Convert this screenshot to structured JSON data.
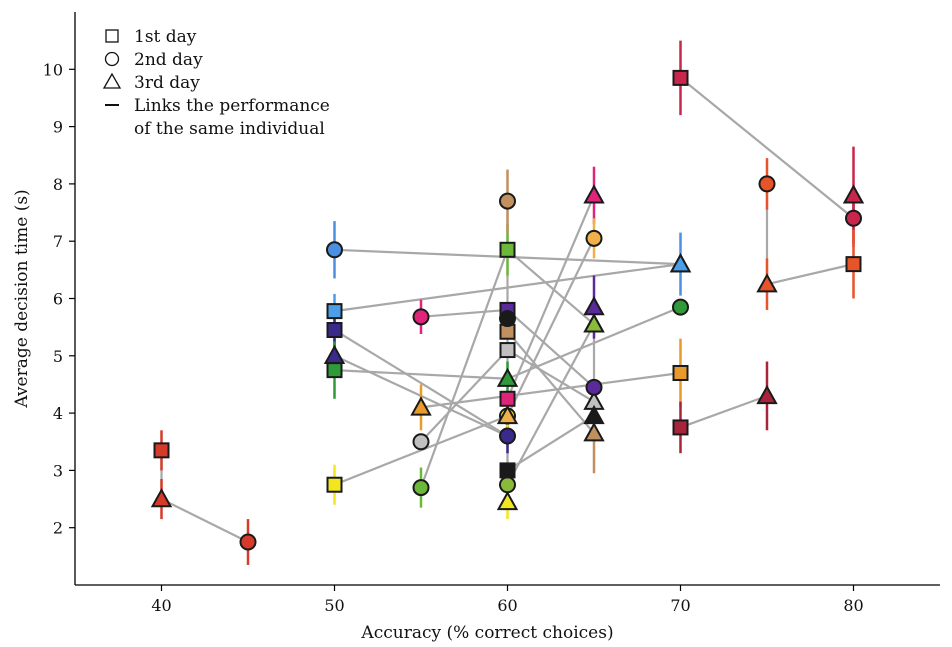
{
  "chart_data": {
    "type": "scatter",
    "xlabel": "Accuracy (% correct choices)",
    "ylabel": "Average decision time (s)",
    "xlim": [
      35,
      85
    ],
    "ylim": [
      1,
      11
    ],
    "xticks": [
      40,
      50,
      60,
      70,
      80
    ],
    "yticks": [
      2,
      3,
      4,
      5,
      6,
      7,
      8,
      9,
      10
    ],
    "legend_position": "top-left",
    "legend": [
      {
        "symbol": "square",
        "label": "1st day"
      },
      {
        "symbol": "circle",
        "label": "2nd day"
      },
      {
        "symbol": "triangle",
        "label": "3rd day"
      },
      {
        "symbol": "line",
        "label": "Links the performance\nof the same individual"
      }
    ],
    "individuals": [
      {
        "color": "#d63a2a",
        "points": [
          {
            "day": 1,
            "x": 40,
            "y": 3.35,
            "err": 0.35
          },
          {
            "day": 3,
            "x": 40,
            "y": 2.5,
            "err": 0.35
          },
          {
            "day": 2,
            "x": 45,
            "y": 1.75,
            "err": 0.4
          }
        ]
      },
      {
        "color": "#c8264a",
        "points": [
          {
            "day": 1,
            "x": 70,
            "y": 9.85,
            "err": 0.65
          },
          {
            "day": 2,
            "x": 80,
            "y": 7.4,
            "err": 0.5
          },
          {
            "day": 3,
            "x": 80,
            "y": 7.8,
            "err": 0.85
          }
        ]
      },
      {
        "color": "#e8542a",
        "points": [
          {
            "day": 2,
            "x": 75,
            "y": 8.0,
            "err": 0.45
          },
          {
            "day": 3,
            "x": 75,
            "y": 6.25,
            "err": 0.45
          },
          {
            "day": 1,
            "x": 80,
            "y": 6.6,
            "err": 0.6
          }
        ]
      },
      {
        "color": "#4a8fe0",
        "points": [
          {
            "day": 2,
            "x": 50,
            "y": 6.85,
            "err": 0.5
          },
          {
            "day": 3,
            "x": 70,
            "y": 6.6,
            "err": 0.55
          }
        ]
      },
      {
        "color": "#4a9fe8",
        "points": [
          {
            "day": 1,
            "x": 50,
            "y": 5.78,
            "err": 0.3
          },
          {
            "day": 3,
            "x": 70,
            "y": 6.6,
            "err": 0.0
          }
        ]
      },
      {
        "color": "#3a2a8c",
        "points": [
          {
            "day": 1,
            "x": 50,
            "y": 5.45,
            "err": 0.3
          },
          {
            "day": 2,
            "x": 60,
            "y": 3.6,
            "err": 0.3
          },
          {
            "day": 3,
            "x": 50,
            "y": 5.0,
            "err": 0.3
          }
        ]
      },
      {
        "color": "#2e9a3a",
        "points": [
          {
            "day": 1,
            "x": 50,
            "y": 4.75,
            "err": 0.5
          },
          {
            "day": 3,
            "x": 60,
            "y": 4.6,
            "err": 0.3
          },
          {
            "day": 2,
            "x": 70,
            "y": 5.85,
            "err": 0.0
          }
        ]
      },
      {
        "color": "#f2e61e",
        "points": [
          {
            "day": 1,
            "x": 50,
            "y": 2.75,
            "err": 0.35
          },
          {
            "day": 2,
            "x": 60,
            "y": 3.95,
            "err": 0.3
          },
          {
            "day": 3,
            "x": 60,
            "y": 2.45,
            "err": 0.3
          }
        ]
      },
      {
        "color": "#e89a2a",
        "points": [
          {
            "day": 3,
            "x": 55,
            "y": 4.1,
            "err": 0.4
          },
          {
            "day": 1,
            "x": 70,
            "y": 4.7,
            "err": 0.6
          }
        ]
      },
      {
        "color": "#e0247a",
        "points": [
          {
            "day": 2,
            "x": 55,
            "y": 5.68,
            "err": 0.3
          },
          {
            "day": 1,
            "x": 60,
            "y": 5.8,
            "err": 0.0
          }
        ]
      },
      {
        "color": "#c0c0c0",
        "points": [
          {
            "day": 2,
            "x": 55,
            "y": 3.5,
            "err": 0.0
          },
          {
            "day": 1,
            "x": 60,
            "y": 5.1,
            "err": 0.0
          },
          {
            "day": 3,
            "x": 65,
            "y": 4.2,
            "err": 0.0
          }
        ]
      },
      {
        "color": "#6cb83a",
        "points": [
          {
            "day": 2,
            "x": 55,
            "y": 2.7,
            "err": 0.35
          },
          {
            "day": 1,
            "x": 60,
            "y": 6.85,
            "err": 0.45
          },
          {
            "day": 3,
            "x": 65,
            "y": 5.55,
            "err": 0.0
          }
        ]
      },
      {
        "color": "#8aba3a",
        "points": [
          {
            "day": 2,
            "x": 60,
            "y": 2.75,
            "err": 0.0
          },
          {
            "day": 3,
            "x": 65,
            "y": 5.55,
            "err": 0.0
          }
        ]
      },
      {
        "color": "#c09060",
        "points": [
          {
            "day": 2,
            "x": 60,
            "y": 7.7,
            "err": 0.55
          },
          {
            "day": 1,
            "x": 60,
            "y": 5.42,
            "err": 0.0
          },
          {
            "day": 3,
            "x": 65,
            "y": 3.65,
            "err": 0.7
          }
        ]
      },
      {
        "color": "#e0247a",
        "points": [
          {
            "day": 1,
            "x": 60,
            "y": 4.25,
            "err": 0.0
          },
          {
            "day": 3,
            "x": 65,
            "y": 7.8,
            "err": 0.5
          }
        ]
      },
      {
        "color": "#5a2a9a",
        "points": [
          {
            "day": 1,
            "x": 60,
            "y": 5.8,
            "err": 0.0
          },
          {
            "day": 2,
            "x": 65,
            "y": 4.45,
            "err": 0.0
          },
          {
            "day": 3,
            "x": 65,
            "y": 5.85,
            "err": 0.55
          }
        ]
      },
      {
        "color": "#1a1a1a",
        "points": [
          {
            "day": 2,
            "x": 60,
            "y": 5.65,
            "err": 0.0
          },
          {
            "day": 1,
            "x": 60,
            "y": 3.0,
            "err": 0.0
          },
          {
            "day": 3,
            "x": 65,
            "y": 3.95,
            "err": 0.0
          }
        ]
      },
      {
        "color": "#f0b04a",
        "points": [
          {
            "day": 2,
            "x": 65,
            "y": 7.05,
            "err": 0.35
          },
          {
            "day": 3,
            "x": 60,
            "y": 3.95,
            "err": 0.0
          }
        ]
      },
      {
        "color": "#a8243a",
        "points": [
          {
            "day": 1,
            "x": 70,
            "y": 3.75,
            "err": 0.45
          },
          {
            "day": 3,
            "x": 75,
            "y": 4.3,
            "err": 0.6
          }
        ]
      }
    ]
  }
}
